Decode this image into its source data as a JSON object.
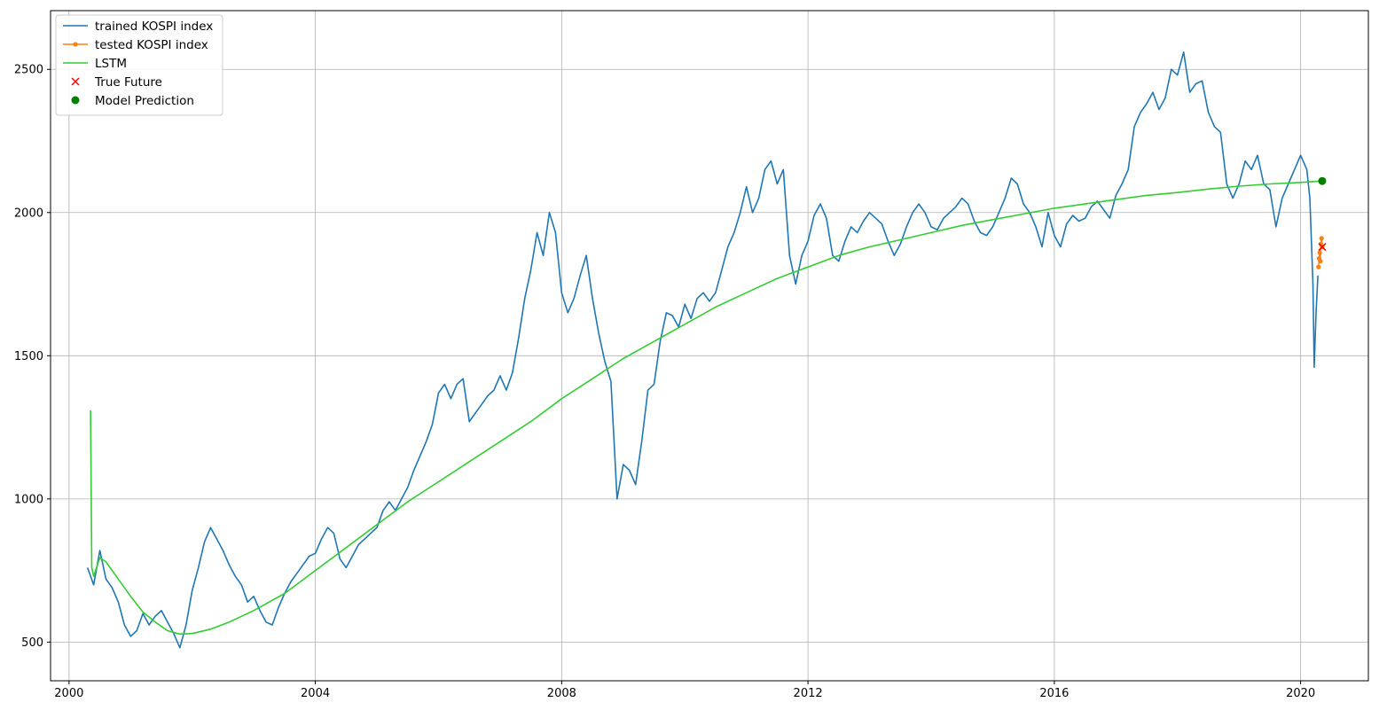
{
  "chart_data": {
    "type": "line",
    "title": "",
    "xlabel": "",
    "ylabel": "",
    "x_axis": {
      "kind": "date-year",
      "range": [
        1999.7,
        2021.1
      ],
      "ticks": [
        2000,
        2004,
        2008,
        2012,
        2016,
        2020
      ],
      "tick_labels": [
        "2000",
        "2004",
        "2008",
        "2012",
        "2016",
        "2020"
      ]
    },
    "y_axis": {
      "range": [
        365,
        2705
      ],
      "ticks": [
        500,
        1000,
        1500,
        2000,
        2500
      ],
      "tick_labels": [
        "500",
        "1000",
        "1500",
        "2000",
        "2500"
      ]
    },
    "grid": true,
    "legend_position": "top-left",
    "series": [
      {
        "name": "trained KOSPI index",
        "kind": "line",
        "color": "#1f77b4",
        "points": [
          [
            2000.3,
            760
          ],
          [
            2000.4,
            700
          ],
          [
            2000.5,
            820
          ],
          [
            2000.6,
            720
          ],
          [
            2000.7,
            690
          ],
          [
            2000.8,
            640
          ],
          [
            2000.9,
            560
          ],
          [
            2001.0,
            520
          ],
          [
            2001.1,
            540
          ],
          [
            2001.2,
            600
          ],
          [
            2001.3,
            560
          ],
          [
            2001.4,
            590
          ],
          [
            2001.5,
            610
          ],
          [
            2001.6,
            570
          ],
          [
            2001.7,
            530
          ],
          [
            2001.8,
            480
          ],
          [
            2001.9,
            560
          ],
          [
            2002.0,
            680
          ],
          [
            2002.1,
            760
          ],
          [
            2002.2,
            850
          ],
          [
            2002.3,
            900
          ],
          [
            2002.4,
            860
          ],
          [
            2002.5,
            820
          ],
          [
            2002.6,
            770
          ],
          [
            2002.7,
            730
          ],
          [
            2002.8,
            700
          ],
          [
            2002.9,
            640
          ],
          [
            2003.0,
            660
          ],
          [
            2003.1,
            610
          ],
          [
            2003.2,
            570
          ],
          [
            2003.3,
            560
          ],
          [
            2003.4,
            620
          ],
          [
            2003.5,
            670
          ],
          [
            2003.6,
            710
          ],
          [
            2003.7,
            740
          ],
          [
            2003.8,
            770
          ],
          [
            2003.9,
            800
          ],
          [
            2004.0,
            810
          ],
          [
            2004.1,
            860
          ],
          [
            2004.2,
            900
          ],
          [
            2004.3,
            880
          ],
          [
            2004.4,
            790
          ],
          [
            2004.5,
            760
          ],
          [
            2004.6,
            800
          ],
          [
            2004.7,
            840
          ],
          [
            2004.8,
            860
          ],
          [
            2004.9,
            880
          ],
          [
            2005.0,
            900
          ],
          [
            2005.1,
            960
          ],
          [
            2005.2,
            990
          ],
          [
            2005.3,
            960
          ],
          [
            2005.4,
            1000
          ],
          [
            2005.5,
            1040
          ],
          [
            2005.6,
            1100
          ],
          [
            2005.7,
            1150
          ],
          [
            2005.8,
            1200
          ],
          [
            2005.9,
            1260
          ],
          [
            2006.0,
            1370
          ],
          [
            2006.1,
            1400
          ],
          [
            2006.2,
            1350
          ],
          [
            2006.3,
            1400
          ],
          [
            2006.4,
            1420
          ],
          [
            2006.5,
            1270
          ],
          [
            2006.6,
            1300
          ],
          [
            2006.7,
            1330
          ],
          [
            2006.8,
            1360
          ],
          [
            2006.9,
            1380
          ],
          [
            2007.0,
            1430
          ],
          [
            2007.1,
            1380
          ],
          [
            2007.2,
            1440
          ],
          [
            2007.3,
            1560
          ],
          [
            2007.4,
            1700
          ],
          [
            2007.5,
            1800
          ],
          [
            2007.6,
            1930
          ],
          [
            2007.7,
            1850
          ],
          [
            2007.8,
            2000
          ],
          [
            2007.9,
            1930
          ],
          [
            2008.0,
            1720
          ],
          [
            2008.1,
            1650
          ],
          [
            2008.2,
            1700
          ],
          [
            2008.3,
            1780
          ],
          [
            2008.4,
            1850
          ],
          [
            2008.5,
            1700
          ],
          [
            2008.6,
            1580
          ],
          [
            2008.7,
            1480
          ],
          [
            2008.8,
            1410
          ],
          [
            2008.9,
            1000
          ],
          [
            2009.0,
            1120
          ],
          [
            2009.1,
            1100
          ],
          [
            2009.2,
            1050
          ],
          [
            2009.3,
            1200
          ],
          [
            2009.4,
            1380
          ],
          [
            2009.5,
            1400
          ],
          [
            2009.6,
            1550
          ],
          [
            2009.7,
            1650
          ],
          [
            2009.8,
            1640
          ],
          [
            2009.9,
            1600
          ],
          [
            2010.0,
            1680
          ],
          [
            2010.1,
            1630
          ],
          [
            2010.2,
            1700
          ],
          [
            2010.3,
            1720
          ],
          [
            2010.4,
            1690
          ],
          [
            2010.5,
            1720
          ],
          [
            2010.6,
            1800
          ],
          [
            2010.7,
            1880
          ],
          [
            2010.8,
            1930
          ],
          [
            2010.9,
            2000
          ],
          [
            2011.0,
            2090
          ],
          [
            2011.1,
            2000
          ],
          [
            2011.2,
            2050
          ],
          [
            2011.3,
            2150
          ],
          [
            2011.4,
            2180
          ],
          [
            2011.5,
            2100
          ],
          [
            2011.6,
            2150
          ],
          [
            2011.7,
            1850
          ],
          [
            2011.8,
            1750
          ],
          [
            2011.9,
            1850
          ],
          [
            2012.0,
            1900
          ],
          [
            2012.1,
            1990
          ],
          [
            2012.2,
            2030
          ],
          [
            2012.3,
            1980
          ],
          [
            2012.4,
            1850
          ],
          [
            2012.5,
            1830
          ],
          [
            2012.6,
            1900
          ],
          [
            2012.7,
            1950
          ],
          [
            2012.8,
            1930
          ],
          [
            2012.9,
            1970
          ],
          [
            2013.0,
            2000
          ],
          [
            2013.1,
            1980
          ],
          [
            2013.2,
            1960
          ],
          [
            2013.3,
            1900
          ],
          [
            2013.4,
            1850
          ],
          [
            2013.5,
            1890
          ],
          [
            2013.6,
            1950
          ],
          [
            2013.7,
            2000
          ],
          [
            2013.8,
            2030
          ],
          [
            2013.9,
            2000
          ],
          [
            2014.0,
            1950
          ],
          [
            2014.1,
            1940
          ],
          [
            2014.2,
            1980
          ],
          [
            2014.3,
            2000
          ],
          [
            2014.4,
            2020
          ],
          [
            2014.5,
            2050
          ],
          [
            2014.6,
            2030
          ],
          [
            2014.7,
            1970
          ],
          [
            2014.8,
            1930
          ],
          [
            2014.9,
            1920
          ],
          [
            2015.0,
            1950
          ],
          [
            2015.1,
            2000
          ],
          [
            2015.2,
            2050
          ],
          [
            2015.3,
            2120
          ],
          [
            2015.4,
            2100
          ],
          [
            2015.5,
            2030
          ],
          [
            2015.6,
            2000
          ],
          [
            2015.7,
            1950
          ],
          [
            2015.8,
            1880
          ],
          [
            2015.9,
            2000
          ],
          [
            2016.0,
            1920
          ],
          [
            2016.1,
            1880
          ],
          [
            2016.2,
            1960
          ],
          [
            2016.3,
            1990
          ],
          [
            2016.4,
            1970
          ],
          [
            2016.5,
            1980
          ],
          [
            2016.6,
            2020
          ],
          [
            2016.7,
            2040
          ],
          [
            2016.8,
            2010
          ],
          [
            2016.9,
            1980
          ],
          [
            2017.0,
            2060
          ],
          [
            2017.1,
            2100
          ],
          [
            2017.2,
            2150
          ],
          [
            2017.3,
            2300
          ],
          [
            2017.4,
            2350
          ],
          [
            2017.5,
            2380
          ],
          [
            2017.6,
            2420
          ],
          [
            2017.7,
            2360
          ],
          [
            2017.8,
            2400
          ],
          [
            2017.9,
            2500
          ],
          [
            2018.0,
            2480
          ],
          [
            2018.1,
            2560
          ],
          [
            2018.2,
            2420
          ],
          [
            2018.3,
            2450
          ],
          [
            2018.4,
            2460
          ],
          [
            2018.5,
            2350
          ],
          [
            2018.6,
            2300
          ],
          [
            2018.7,
            2280
          ],
          [
            2018.8,
            2100
          ],
          [
            2018.9,
            2050
          ],
          [
            2019.0,
            2100
          ],
          [
            2019.1,
            2180
          ],
          [
            2019.2,
            2150
          ],
          [
            2019.3,
            2200
          ],
          [
            2019.4,
            2100
          ],
          [
            2019.5,
            2080
          ],
          [
            2019.6,
            1950
          ],
          [
            2019.7,
            2050
          ],
          [
            2019.8,
            2100
          ],
          [
            2019.9,
            2150
          ],
          [
            2020.0,
            2200
          ],
          [
            2020.1,
            2150
          ],
          [
            2020.15,
            2050
          ],
          [
            2020.2,
            1750
          ],
          [
            2020.22,
            1460
          ],
          [
            2020.25,
            1650
          ],
          [
            2020.28,
            1780
          ]
        ]
      },
      {
        "name": "tested KOSPI index",
        "kind": "line-markers",
        "color": "#ff7f0e",
        "points": [
          [
            2020.29,
            1810
          ],
          [
            2020.3,
            1840
          ],
          [
            2020.31,
            1860
          ],
          [
            2020.32,
            1830
          ],
          [
            2020.33,
            1890
          ],
          [
            2020.34,
            1910
          ],
          [
            2020.35,
            1880
          ]
        ]
      },
      {
        "name": "LSTM",
        "kind": "line",
        "color": "#32cd32",
        "points": [
          [
            2000.35,
            1310
          ],
          [
            2000.37,
            760
          ],
          [
            2000.4,
            730
          ],
          [
            2000.5,
            795
          ],
          [
            2000.6,
            780
          ],
          [
            2000.8,
            720
          ],
          [
            2001.0,
            660
          ],
          [
            2001.2,
            605
          ],
          [
            2001.4,
            570
          ],
          [
            2001.6,
            540
          ],
          [
            2001.8,
            528
          ],
          [
            2002.0,
            530
          ],
          [
            2002.3,
            545
          ],
          [
            2002.6,
            570
          ],
          [
            2003.0,
            610
          ],
          [
            2003.5,
            670
          ],
          [
            2004.0,
            750
          ],
          [
            2004.5,
            830
          ],
          [
            2005.0,
            910
          ],
          [
            2005.5,
            990
          ],
          [
            2006.0,
            1060
          ],
          [
            2006.5,
            1130
          ],
          [
            2007.0,
            1200
          ],
          [
            2007.5,
            1270
          ],
          [
            2008.0,
            1350
          ],
          [
            2008.5,
            1420
          ],
          [
            2009.0,
            1490
          ],
          [
            2009.5,
            1550
          ],
          [
            2010.0,
            1610
          ],
          [
            2010.5,
            1670
          ],
          [
            2011.0,
            1720
          ],
          [
            2011.5,
            1770
          ],
          [
            2012.0,
            1810
          ],
          [
            2012.5,
            1850
          ],
          [
            2013.0,
            1880
          ],
          [
            2013.5,
            1905
          ],
          [
            2014.0,
            1930
          ],
          [
            2014.5,
            1955
          ],
          [
            2015.0,
            1975
          ],
          [
            2015.5,
            1995
          ],
          [
            2016.0,
            2015
          ],
          [
            2016.5,
            2030
          ],
          [
            2017.0,
            2045
          ],
          [
            2017.5,
            2060
          ],
          [
            2018.0,
            2070
          ],
          [
            2018.5,
            2082
          ],
          [
            2019.0,
            2092
          ],
          [
            2019.5,
            2100
          ],
          [
            2020.0,
            2105
          ],
          [
            2020.35,
            2110
          ]
        ]
      },
      {
        "name": "True Future",
        "kind": "marker-x",
        "color": "#ff0000",
        "points": [
          [
            2020.35,
            1880
          ]
        ]
      },
      {
        "name": "Model Prediction",
        "kind": "marker-circle",
        "color": "#008000",
        "points": [
          [
            2020.35,
            2110
          ]
        ]
      }
    ]
  }
}
